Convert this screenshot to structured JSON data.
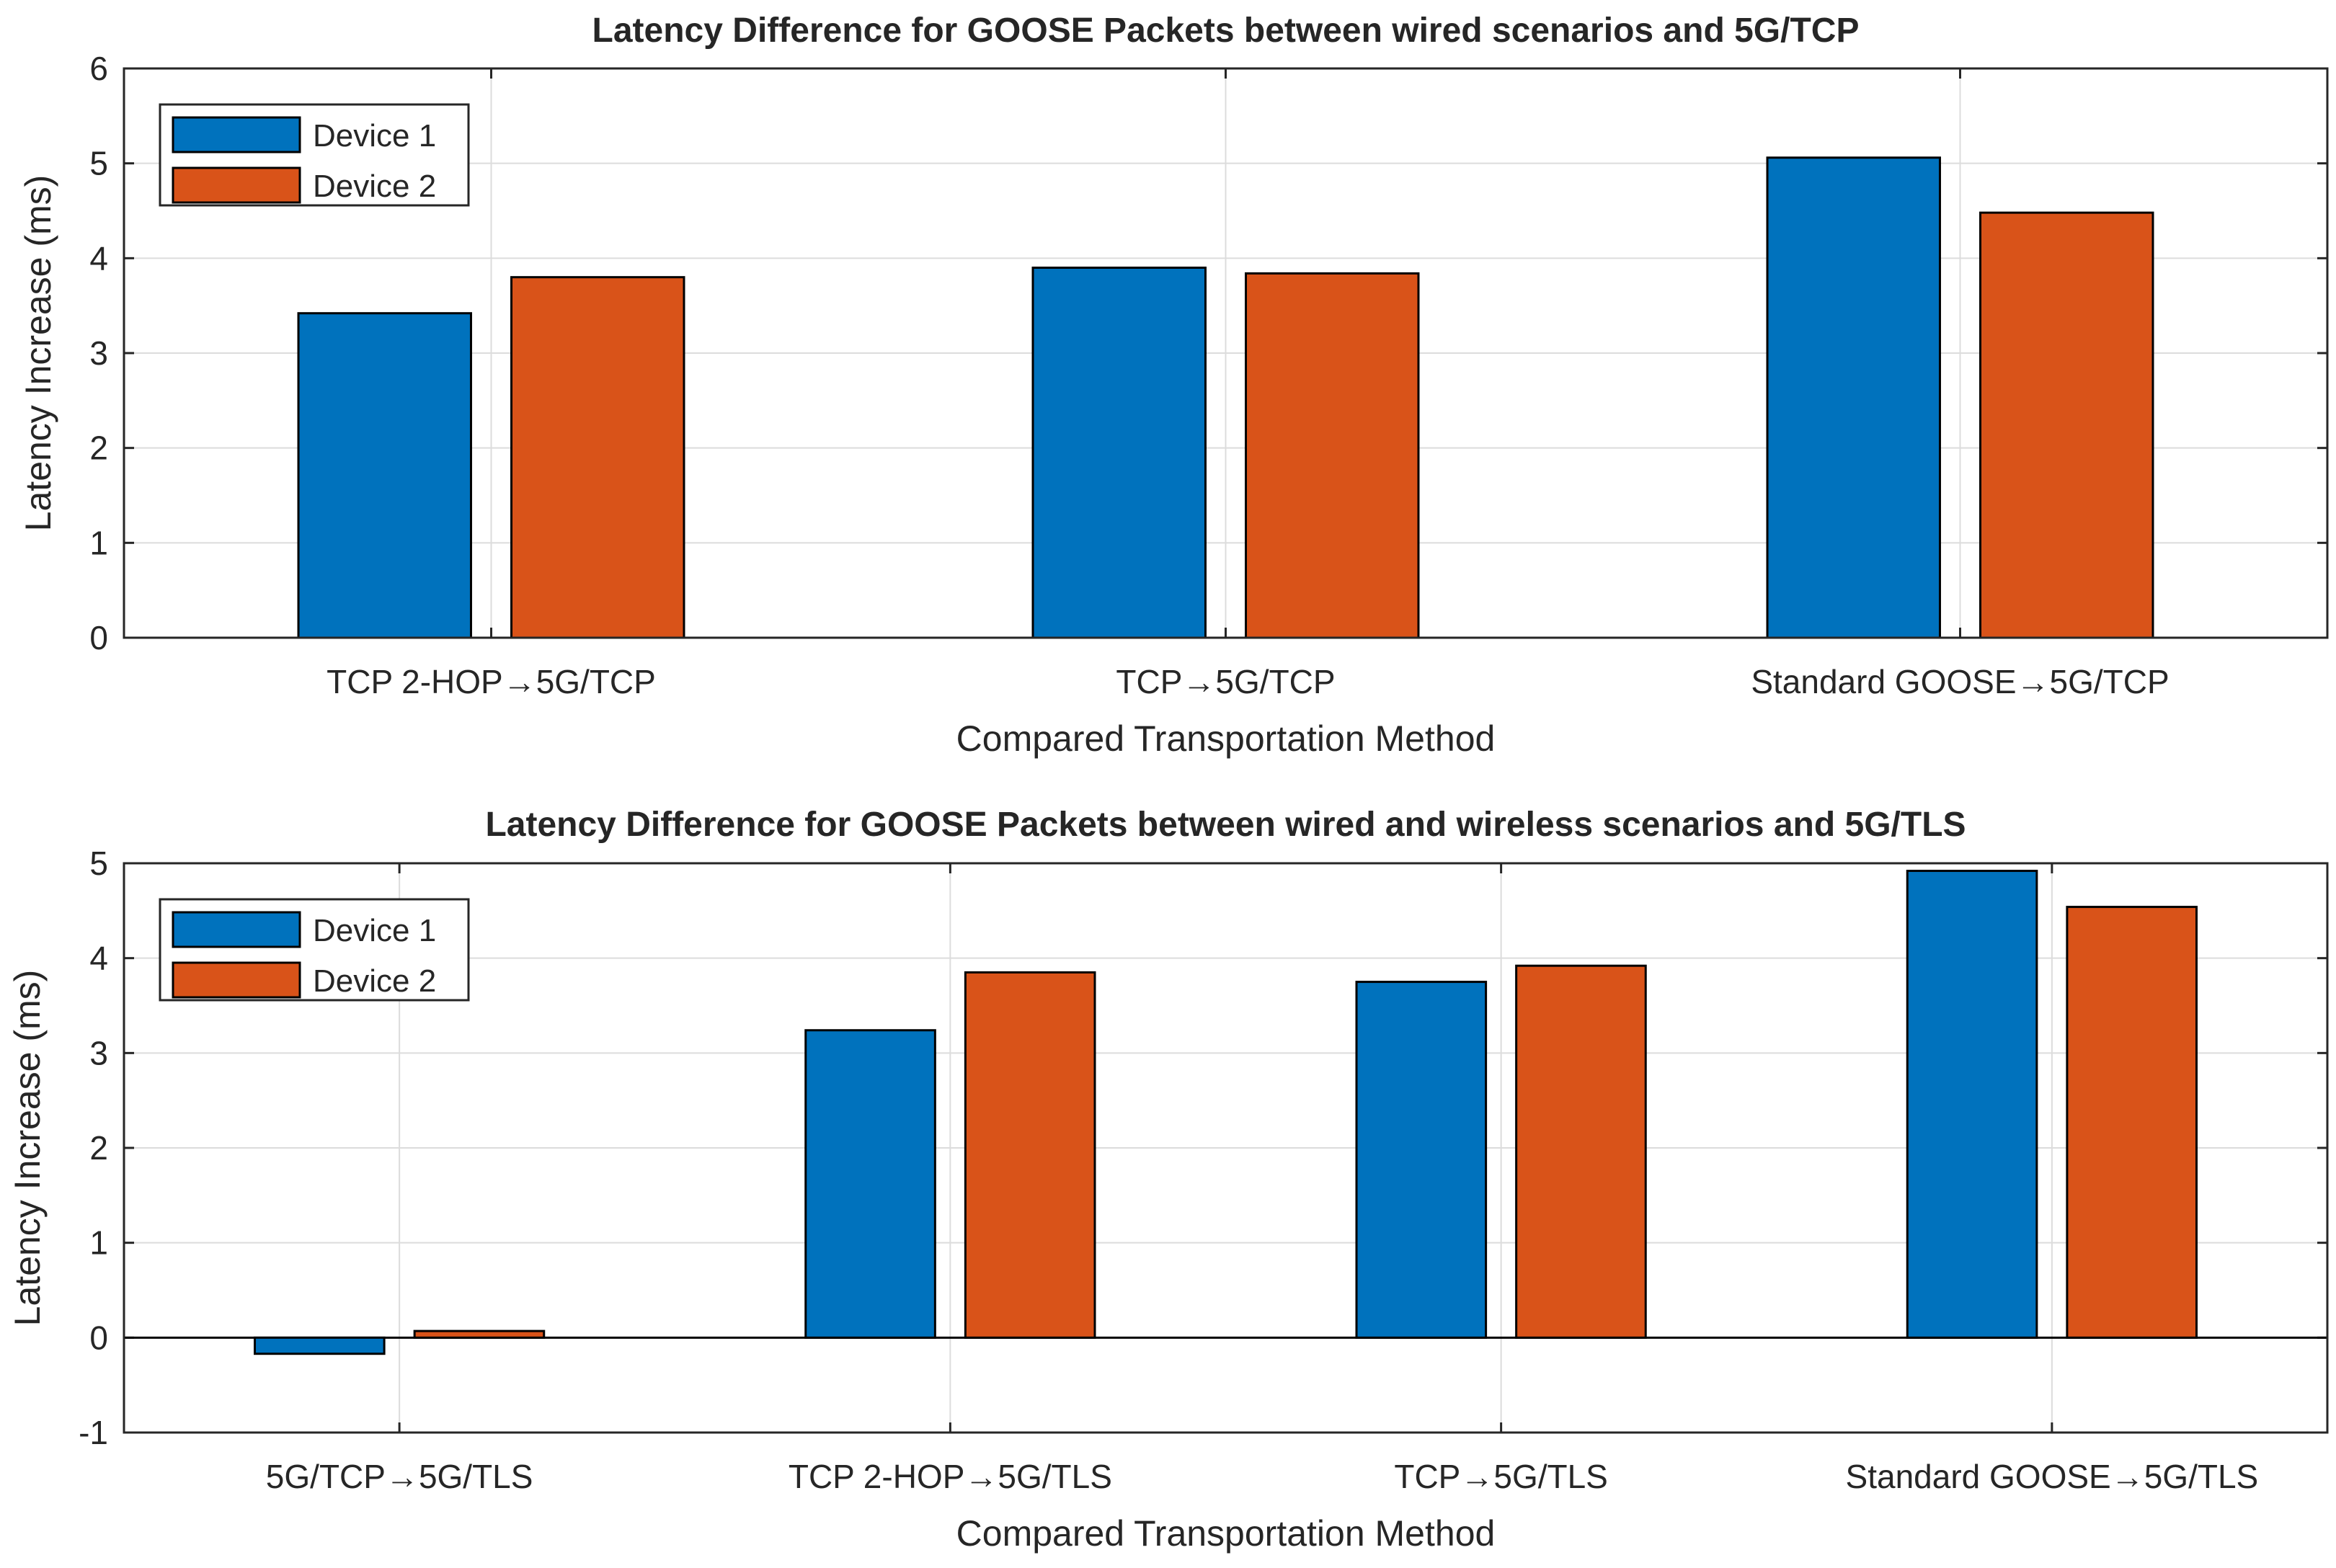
{
  "chart_data": [
    {
      "type": "bar",
      "title": "Latency Difference for GOOSE Packets between wired scenarios and 5G/TCP",
      "xlabel": "Compared Transportation Method",
      "ylabel": "Latency Increase (ms)",
      "categories": [
        "TCP 2-HOP→5G/TCP",
        "TCP→5G/TCP",
        "Standard GOOSE→5G/TCP"
      ],
      "series": [
        {
          "name": "Device 1",
          "color": "#0072bd",
          "values": [
            3.42,
            3.9,
            5.06
          ]
        },
        {
          "name": "Device 2",
          "color": "#d95319",
          "values": [
            3.8,
            3.84,
            4.48
          ]
        }
      ],
      "ylim": [
        0,
        6
      ],
      "yticks": [
        "0",
        "1",
        "2",
        "3",
        "4",
        "5",
        "6"
      ],
      "grid": true,
      "legend": "top-left"
    },
    {
      "type": "bar",
      "title": "Latency Difference for GOOSE Packets between wired and wireless scenarios and 5G/TLS",
      "xlabel": "Compared Transportation Method",
      "ylabel": "Latency Increase (ms)",
      "categories": [
        "5G/TCP→5G/TLS",
        "TCP 2-HOP→5G/TLS",
        "TCP→5G/TLS",
        "Standard GOOSE→5G/TLS"
      ],
      "series": [
        {
          "name": "Device 1",
          "color": "#0072bd",
          "values": [
            -0.17,
            3.24,
            3.75,
            4.92
          ]
        },
        {
          "name": "Device 2",
          "color": "#d95319",
          "values": [
            0.07,
            3.85,
            3.92,
            4.54
          ]
        }
      ],
      "ylim": [
        -1,
        5
      ],
      "yticks": [
        "-1",
        "0",
        "1",
        "2",
        "3",
        "4",
        "5"
      ],
      "grid": true,
      "legend": "top-left"
    }
  ]
}
